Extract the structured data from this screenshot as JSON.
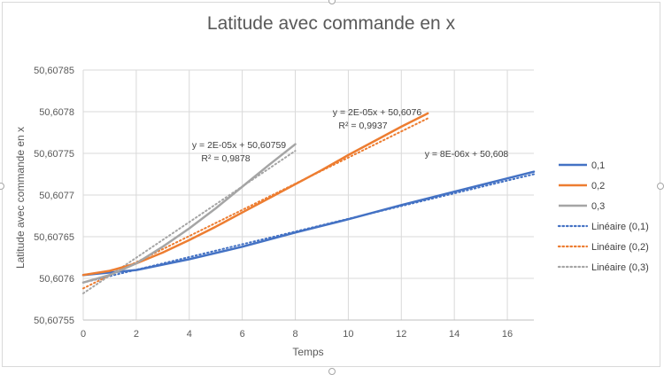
{
  "chart_data": {
    "type": "line",
    "title": "Latitude avec commande en x",
    "xlabel": "Temps",
    "ylabel": "Latitude avec commande en x",
    "xlim": [
      0,
      17
    ],
    "ylim": [
      50.60755,
      50.60785
    ],
    "x_ticks": [
      "0",
      "2",
      "4",
      "6",
      "8",
      "10",
      "12",
      "14",
      "16"
    ],
    "y_ticks": [
      "50,60755",
      "50,6076",
      "50,60765",
      "50,6077",
      "50,60775",
      "50,6078",
      "50,60785"
    ],
    "grid": true,
    "legend_position": "right",
    "series": [
      {
        "name": "0,1",
        "color": "#4472c4",
        "style": "solid",
        "x": [
          0,
          2,
          4,
          6,
          8,
          10,
          12,
          14,
          16,
          17
        ],
        "y": [
          50.607604,
          50.60761,
          50.607623,
          50.607638,
          50.607655,
          50.607671,
          50.607688,
          50.607704,
          50.60772,
          50.607728
        ]
      },
      {
        "name": "0,2",
        "color": "#ed7d31",
        "style": "solid",
        "x": [
          0,
          1,
          2,
          3,
          4,
          5,
          6,
          7,
          8,
          9,
          10,
          11,
          12,
          13
        ],
        "y": [
          50.607604,
          50.607609,
          50.607618,
          50.607631,
          50.607646,
          50.607662,
          50.607679,
          50.607696,
          50.607713,
          50.60773,
          50.607748,
          50.607765,
          50.607782,
          50.607798
        ]
      },
      {
        "name": "0,3",
        "color": "#a5a5a5",
        "style": "solid",
        "x": [
          0,
          1,
          2,
          3,
          4,
          5,
          6,
          7,
          8
        ],
        "y": [
          50.607595,
          50.607604,
          50.607618,
          50.607638,
          50.60766,
          50.607684,
          50.60771,
          50.607736,
          50.607761
        ]
      },
      {
        "name": "Linéaire (0,1)",
        "color": "#4472c4",
        "style": "dotted",
        "x": [
          0,
          17
        ],
        "y": [
          50.607595,
          50.607725
        ]
      },
      {
        "name": "Linéaire (0,2)",
        "color": "#ed7d31",
        "style": "dotted",
        "x": [
          0,
          13
        ],
        "y": [
          50.607588,
          50.607792
        ]
      },
      {
        "name": "Linéaire (0,3)",
        "color": "#a5a5a5",
        "style": "dotted",
        "x": [
          0,
          8
        ],
        "y": [
          50.607582,
          50.607753
        ]
      }
    ],
    "annotations": [
      {
        "line1": "y = 2E-05x + 50,60759",
        "line2": "R² = 0,9878"
      },
      {
        "line1": "y = 2E-05x + 50,6076",
        "line2": "R² = 0,9937"
      },
      {
        "line1": "y = 8E-06x + 50,608",
        "line2": ""
      }
    ]
  }
}
